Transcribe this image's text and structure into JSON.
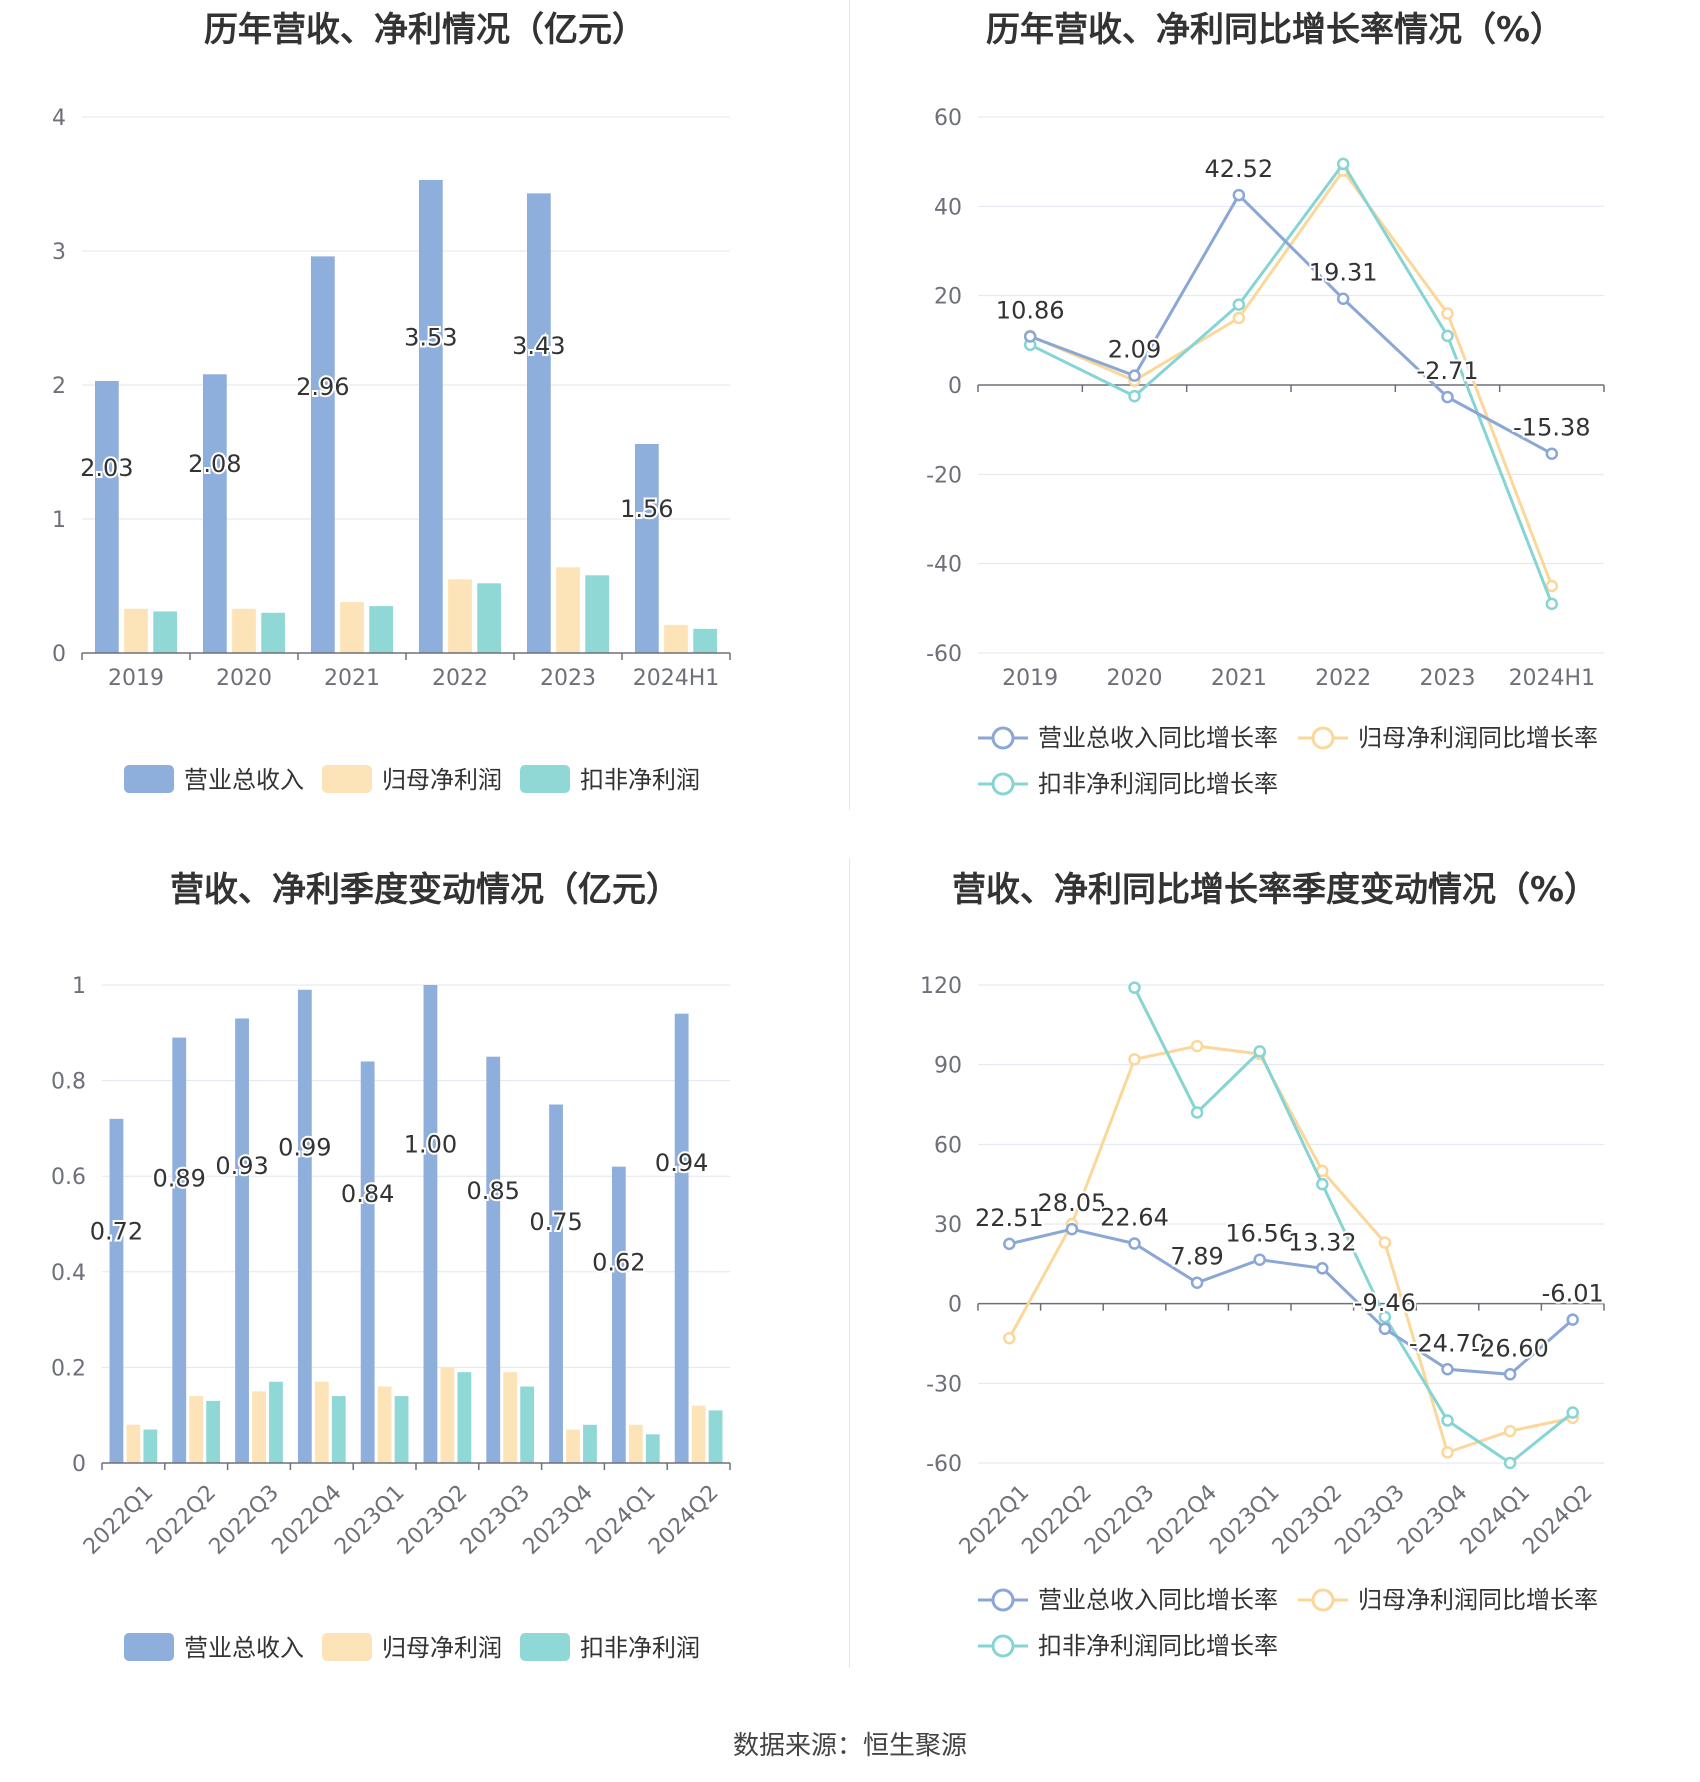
{
  "colors": {
    "revenue": "#8eaedb",
    "net_profit": "#fde3b8",
    "deducted_profit": "#8fd8d6",
    "revenue_line": "#8aa7d6",
    "net_line": "#fbd79a",
    "deducted_line": "#86d4d4",
    "grid": "#e3e6f0",
    "axis_text": "#6e7079",
    "label_text": "#333333"
  },
  "footer": "数据来源：恒生聚源",
  "chart_data": [
    {
      "id": "annual_amount",
      "type": "bar",
      "title": "历年营收、净利情况（亿元）",
      "categories": [
        "2019",
        "2020",
        "2021",
        "2022",
        "2023",
        "2024H1"
      ],
      "yticks": [
        "0",
        "1",
        "2",
        "3",
        "4"
      ],
      "ylim": [
        0,
        4
      ],
      "series": [
        {
          "name": "营业总收入",
          "values": [
            2.03,
            2.08,
            2.96,
            3.53,
            3.43,
            1.56
          ],
          "labels": [
            "2.03",
            "2.08",
            "2.96",
            "3.53",
            "3.43",
            "1.56"
          ]
        },
        {
          "name": "归母净利润",
          "values": [
            0.33,
            0.33,
            0.38,
            0.55,
            0.64,
            0.21
          ]
        },
        {
          "name": "扣非净利润",
          "values": [
            0.31,
            0.3,
            0.35,
            0.52,
            0.58,
            0.18
          ]
        }
      ],
      "legend": [
        "营业总收入",
        "归母净利润",
        "扣非净利润"
      ]
    },
    {
      "id": "annual_growth",
      "type": "line",
      "title": "历年营收、净利同比增长率情况（%）",
      "categories": [
        "2019",
        "2020",
        "2021",
        "2022",
        "2023",
        "2024H1"
      ],
      "yticks": [
        "-60",
        "-40",
        "-20",
        "0",
        "20",
        "40",
        "60"
      ],
      "ylim": [
        -60,
        60
      ],
      "series": [
        {
          "name": "营业总收入同比增长率",
          "values": [
            10.86,
            2.09,
            42.52,
            19.31,
            -2.71,
            -15.38
          ],
          "labels": [
            "10.86",
            "2.09",
            "42.52",
            "19.31",
            "-2.71",
            "-15.38"
          ]
        },
        {
          "name": "归母净利润同比增长率",
          "values": [
            11,
            1,
            15,
            48,
            16,
            -45
          ]
        },
        {
          "name": "扣非净利润同比增长率",
          "values": [
            9,
            -2.5,
            18,
            49.5,
            11,
            -49
          ]
        }
      ],
      "legend": [
        "营业总收入同比增长率",
        "归母净利润同比增长率",
        "扣非净利润同比增长率"
      ]
    },
    {
      "id": "quarterly_amount",
      "type": "bar",
      "title": "营收、净利季度变动情况（亿元）",
      "categories": [
        "2022Q1",
        "2022Q2",
        "2022Q3",
        "2022Q4",
        "2023Q1",
        "2023Q2",
        "2023Q3",
        "2023Q4",
        "2024Q1",
        "2024Q2"
      ],
      "yticks": [
        "0",
        "0.2",
        "0.4",
        "0.6",
        "0.8",
        "1"
      ],
      "ylim": [
        0,
        1
      ],
      "series": [
        {
          "name": "营业总收入",
          "values": [
            0.72,
            0.89,
            0.93,
            0.99,
            0.84,
            1.0,
            0.85,
            0.75,
            0.62,
            0.94
          ],
          "labels": [
            "0.72",
            "0.89",
            "0.93",
            "0.99",
            "0.84",
            "1.00",
            "0.85",
            "0.75",
            "0.62",
            "0.94"
          ]
        },
        {
          "name": "归母净利润",
          "values": [
            0.08,
            0.14,
            0.15,
            0.17,
            0.16,
            0.2,
            0.19,
            0.07,
            0.08,
            0.12
          ]
        },
        {
          "name": "扣非净利润",
          "values": [
            0.07,
            0.13,
            0.17,
            0.14,
            0.14,
            0.19,
            0.16,
            0.08,
            0.06,
            0.11
          ]
        }
      ],
      "legend": [
        "营业总收入",
        "归母净利润",
        "扣非净利润"
      ]
    },
    {
      "id": "quarterly_growth",
      "type": "line",
      "title": "营收、净利同比增长率季度变动情况（%）",
      "categories": [
        "2022Q1",
        "2022Q2",
        "2022Q3",
        "2022Q4",
        "2023Q1",
        "2023Q2",
        "2023Q3",
        "2023Q4",
        "2024Q1",
        "2024Q2"
      ],
      "yticks": [
        "-60",
        "-30",
        "0",
        "30",
        "60",
        "90",
        "120"
      ],
      "ylim": [
        -60,
        120
      ],
      "series": [
        {
          "name": "营业总收入同比增长率",
          "values": [
            22.51,
            28.05,
            22.64,
            7.89,
            16.56,
            13.32,
            -9.46,
            -24.7,
            -26.6,
            -6.01
          ],
          "labels": [
            "22.51",
            "28.05",
            "22.64",
            "7.89",
            "16.56",
            "13.32",
            "-9.46",
            "-24.70",
            "-26.60",
            "-6.01"
          ]
        },
        {
          "name": "归母净利润同比增长率",
          "values": [
            -13,
            30,
            92,
            97,
            94,
            50,
            23,
            -56,
            -48,
            -43
          ]
        },
        {
          "name": "扣非净利润同比增长率",
          "values": [
            null,
            null,
            119,
            72,
            95,
            45,
            -5,
            -44,
            -60,
            -41
          ]
        }
      ],
      "legend": [
        "营业总收入同比增长率",
        "归母净利润同比增长率",
        "扣非净利润同比增长率"
      ]
    }
  ]
}
